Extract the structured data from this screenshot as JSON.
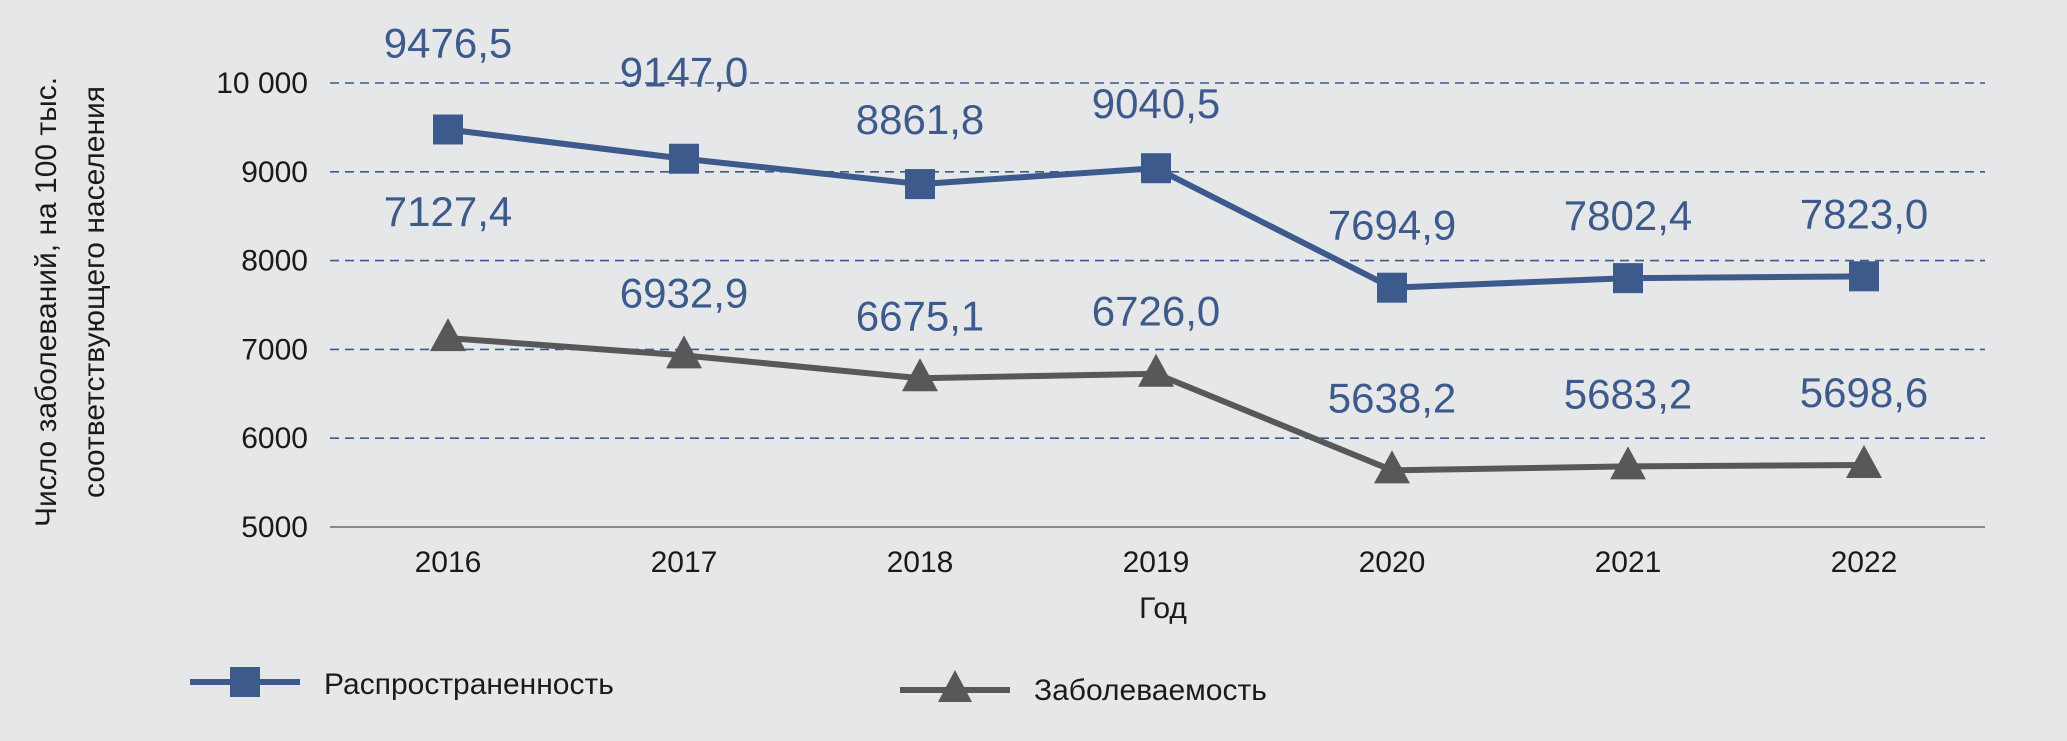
{
  "chart_data": {
    "type": "line",
    "x": [
      "2016",
      "2017",
      "2018",
      "2019",
      "2020",
      "2021",
      "2022"
    ],
    "series": [
      {
        "name": "Распространенность",
        "values": [
          9476.5,
          9147.0,
          8861.8,
          9040.5,
          7694.9,
          7802.4,
          7823.0
        ],
        "labels": [
          "9476,5",
          "9147,0",
          "8861,8",
          "9040,5",
          "7694,9",
          "7802,4",
          "7823,0"
        ],
        "color": "#3d5a8c",
        "marker": "square"
      },
      {
        "name": "Заболеваемость",
        "values": [
          7127.4,
          6932.9,
          6675.1,
          6726.0,
          5638.2,
          5683.2,
          5698.6
        ],
        "labels": [
          "7127,4",
          "6932,9",
          "6675,1",
          "6726,0",
          "5638,2",
          "5683,2",
          "5698,6"
        ],
        "color": "#58585a",
        "marker": "triangle"
      }
    ],
    "label_color": "#3d5a8c",
    "xlabel": "Год",
    "ylabel_lines": [
      "Число заболеваний, на 100 тыс.",
      "соответствующего населения"
    ],
    "ylim": [
      5000,
      10000
    ],
    "yticks": [
      5000,
      6000,
      7000,
      8000,
      9000,
      10000
    ],
    "ytick_labels": [
      "5000",
      "6000",
      "7000",
      "8000",
      "9000",
      "10 000"
    ],
    "grid": "dashed horizontal",
    "legend_position": "bottom"
  }
}
